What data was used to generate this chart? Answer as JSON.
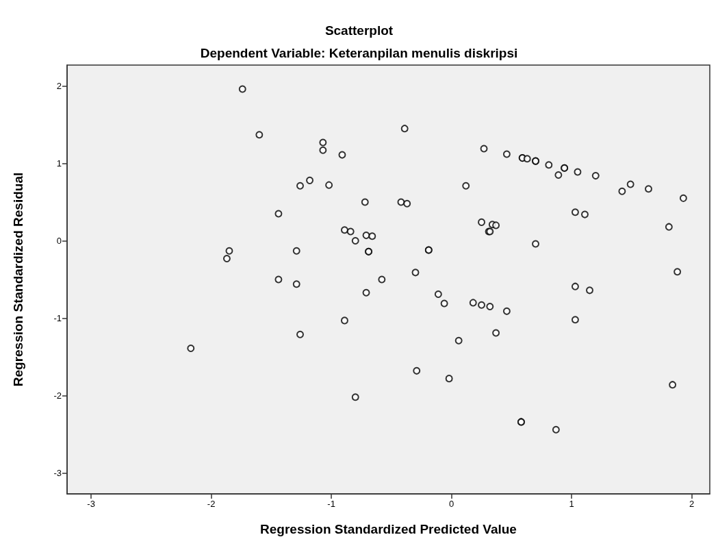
{
  "chart_data": {
    "type": "scatter",
    "title": "Scatterplot",
    "subtitle": "Dependent Variable: Keteranpilan menulis diskripsi",
    "xlabel": "Regression Standardized Predicted Value",
    "ylabel": "Regression Standardized Residual",
    "xlim": [
      -3.2,
      2.15
    ],
    "ylim": [
      -3.27,
      2.27
    ],
    "xticks": [
      -3,
      -2,
      -1,
      0,
      1,
      2
    ],
    "yticks": [
      -3,
      -2,
      -1,
      0,
      1,
      2
    ],
    "grid": false,
    "marker": "circle",
    "series": [
      {
        "color": "#000000",
        "x": [
          -1.74,
          -1.6,
          -1.44,
          -1.85,
          -1.87,
          -1.44,
          -2.17,
          -0.39,
          -1.07,
          -1.07,
          -0.91,
          0.27,
          0.46,
          -1.18,
          -1.26,
          -1.02,
          0.12,
          -0.72,
          -0.42,
          -0.37,
          0.25,
          0.34,
          0.37,
          0.31,
          0.32,
          -0.89,
          -0.84,
          -0.71,
          -0.66,
          -0.8,
          -1.29,
          -0.69,
          -0.69,
          -0.19,
          -0.19,
          -0.3,
          -0.58,
          -1.29,
          0.59,
          0.59,
          0.63,
          0.7,
          0.7,
          0.81,
          0.94,
          0.94,
          0.89,
          1.05,
          1.2,
          1.42,
          1.49,
          1.64,
          1.93,
          1.03,
          1.11,
          1.81,
          0.7,
          1.88,
          -0.71,
          -0.11,
          -0.06,
          0.18,
          0.25,
          0.32,
          0.46,
          -0.89,
          -1.26,
          0.37,
          0.06,
          -0.29,
          -0.02,
          -0.8,
          1.03,
          1.15,
          1.03,
          1.84,
          0.58,
          0.58,
          0.87
        ],
        "values": [
          1.96,
          1.37,
          0.35,
          -0.13,
          -0.23,
          -0.5,
          -1.39,
          1.45,
          1.27,
          1.17,
          1.11,
          1.19,
          1.12,
          0.78,
          0.71,
          0.72,
          0.71,
          0.5,
          0.5,
          0.48,
          0.24,
          0.21,
          0.2,
          0.12,
          0.12,
          0.14,
          0.12,
          0.07,
          0.06,
          0,
          -0.13,
          -0.14,
          -0.14,
          -0.12,
          -0.12,
          -0.41,
          -0.5,
          -0.56,
          1.07,
          1.07,
          1.06,
          1.03,
          1.03,
          0.98,
          0.94,
          0.94,
          0.85,
          0.89,
          0.84,
          0.64,
          0.73,
          0.67,
          0.55,
          0.37,
          0.34,
          0.18,
          -0.04,
          -0.4,
          -0.67,
          -0.69,
          -0.81,
          -0.8,
          -0.83,
          -0.85,
          -0.91,
          -1.03,
          -1.21,
          -1.19,
          -1.29,
          -1.68,
          -1.78,
          -2.02,
          -0.59,
          -0.64,
          -1.02,
          -1.86,
          -2.34,
          -2.34,
          -2.44
        ]
      }
    ]
  }
}
